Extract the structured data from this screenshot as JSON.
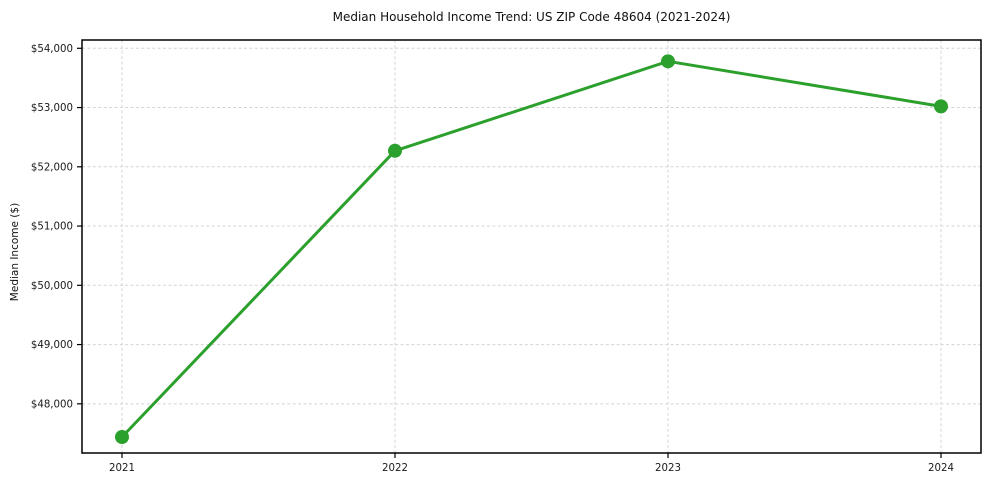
{
  "figure": {
    "title": "Median Household Income Trend: US ZIP Code 48604 (2021-2024)",
    "y_axis_label": "Median Income ($)"
  },
  "chart_data": {
    "type": "line",
    "title": "Median Household Income Trend: US ZIP Code 48604 (2021-2024)",
    "xlabel": "",
    "ylabel": "Median Income ($)",
    "x": [
      2021,
      2022,
      2023,
      2024
    ],
    "x_tick_labels": [
      "2021",
      "2022",
      "2023",
      "2024"
    ],
    "series": [
      {
        "name": "Median Household Income",
        "values": [
          47440,
          52270,
          53780,
          53020
        ]
      }
    ],
    "y_ticks": [
      48000,
      49000,
      50000,
      51000,
      52000,
      53000,
      54000
    ],
    "y_tick_labels": [
      "$48,000",
      "$49,000",
      "$50,000",
      "$51,000",
      "$52,000",
      "$53,000",
      "$54,000"
    ],
    "ylim": [
      47170,
      54140
    ],
    "xlim": [
      2021,
      2024
    ],
    "grid": "both, dashed",
    "legend": "none",
    "marker": "circle",
    "colors": {
      "line": "#2ca02c",
      "marker": "#2ca02c",
      "grid": "#d4d4d4",
      "spine": "#000000",
      "background": "#ffffff",
      "text": "#1a1a1a"
    }
  }
}
